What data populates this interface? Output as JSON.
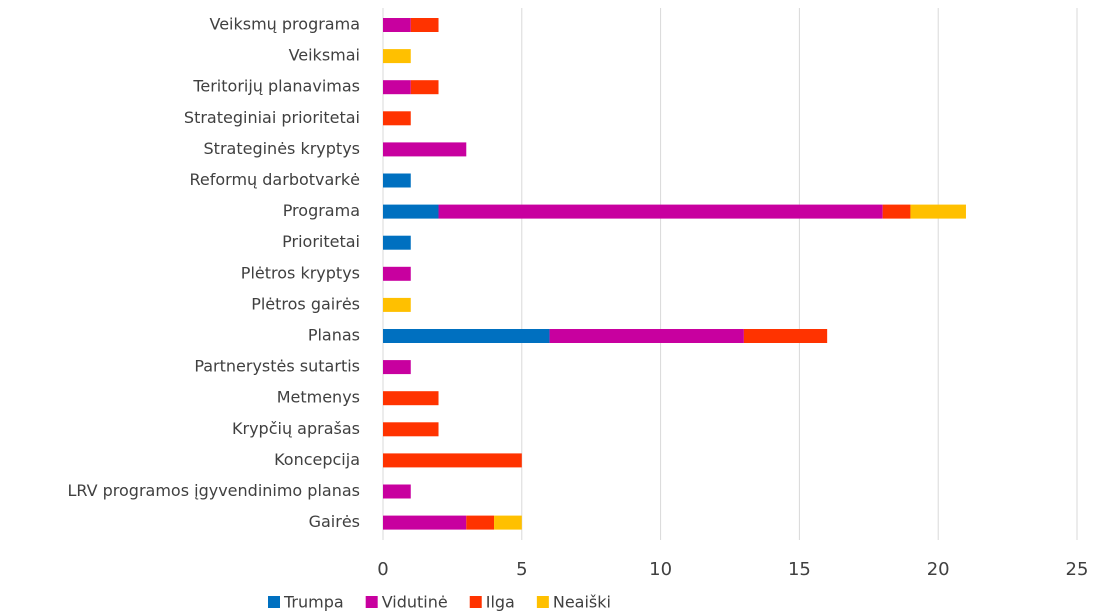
{
  "chart_data": {
    "type": "stacked_barh",
    "categories": [
      "Veiksmų programa",
      "Veiksmai",
      "Teritorijų planavimas",
      "Strateginiai prioritetai",
      "Strateginės kryptys",
      "Reformų darbotvarkė",
      "Programa",
      "Prioritetai",
      "Plėtros kryptys",
      "Plėtros gairės",
      "Planas",
      "Partnerystės sutartis",
      "Metmenys",
      "Krypčių aprašas",
      "Koncepcija",
      "LRV programos įgyvendinimo planas",
      "Gairės"
    ],
    "series": [
      {
        "name": "Trumpa",
        "color": "#0070c0",
        "values": [
          0,
          0,
          0,
          0,
          0,
          1,
          2,
          1,
          0,
          0,
          6,
          0,
          0,
          0,
          0,
          0,
          0
        ]
      },
      {
        "name": "Vidutinė",
        "color": "#c8009f",
        "values": [
          1,
          0,
          1,
          0,
          3,
          0,
          16,
          0,
          1,
          0,
          7,
          1,
          0,
          0,
          0,
          1,
          3
        ]
      },
      {
        "name": "Ilga",
        "color": "#ff3300",
        "values": [
          1,
          0,
          1,
          1,
          0,
          0,
          1,
          0,
          0,
          0,
          3,
          0,
          2,
          2,
          5,
          0,
          1
        ]
      },
      {
        "name": "Neaiški",
        "color": "#ffc000",
        "values": [
          0,
          1,
          0,
          0,
          0,
          0,
          2,
          0,
          0,
          1,
          0,
          0,
          0,
          0,
          0,
          0,
          1
        ]
      }
    ],
    "xlim": [
      0,
      25
    ],
    "xticks": [
      0,
      5,
      10,
      15,
      20,
      25
    ],
    "grid": true,
    "legend": "bottom"
  }
}
